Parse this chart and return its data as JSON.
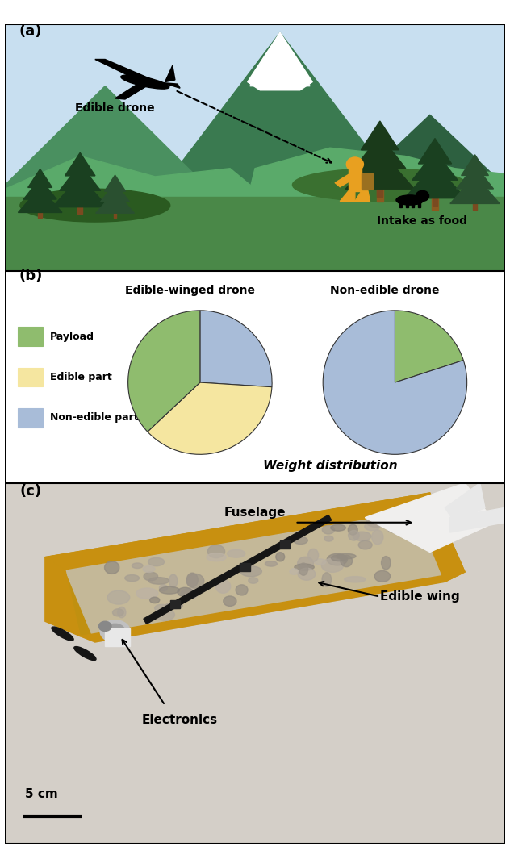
{
  "panel_a_label": "(a)",
  "panel_b_label": "(b)",
  "panel_c_label": "(c)",
  "pie1_title": "Edible-winged drone",
  "pie2_title": "Non-edible drone",
  "pie1_sizes": [
    26,
    37,
    37
  ],
  "pie1_colors": [
    "#a8bcd8",
    "#f5e6a0",
    "#8fbc6e"
  ],
  "pie2_sizes": [
    20,
    80
  ],
  "pie2_colors": [
    "#8fbc6e",
    "#a8bcd8"
  ],
  "legend_labels": [
    "Payload",
    "Edible part",
    "Non-edible part"
  ],
  "legend_colors": [
    "#8fbc6e",
    "#f5e6a0",
    "#a8bcd8"
  ],
  "weight_dist_label": "Weight distribution",
  "sky_color": "#c8dff0",
  "mountain_snow_color": "#e8f0f8",
  "mountain_dark_color": "#3a7a50",
  "mountain_mid_color": "#4a9060",
  "mountain_light_color": "#5aaa70",
  "ground_color": "#6ab858",
  "ground_dark_color": "#3a6a28",
  "ground_mid_color": "#4a8038",
  "tree_dark": "#1a4a20",
  "tree_mid": "#2a6030",
  "trunk_color": "#7a4a20",
  "person_color": "#e8a020",
  "drone_color": "#101010",
  "photo_bg": "#d8d0c8",
  "wing_gold": "#c8960a",
  "wing_food": "#c0b090",
  "wing_food2": "#b0a080",
  "white_color": "#f0f0f0",
  "text_color": "#000000",
  "pie1_startangle": 90,
  "pie2_startangle": 90
}
